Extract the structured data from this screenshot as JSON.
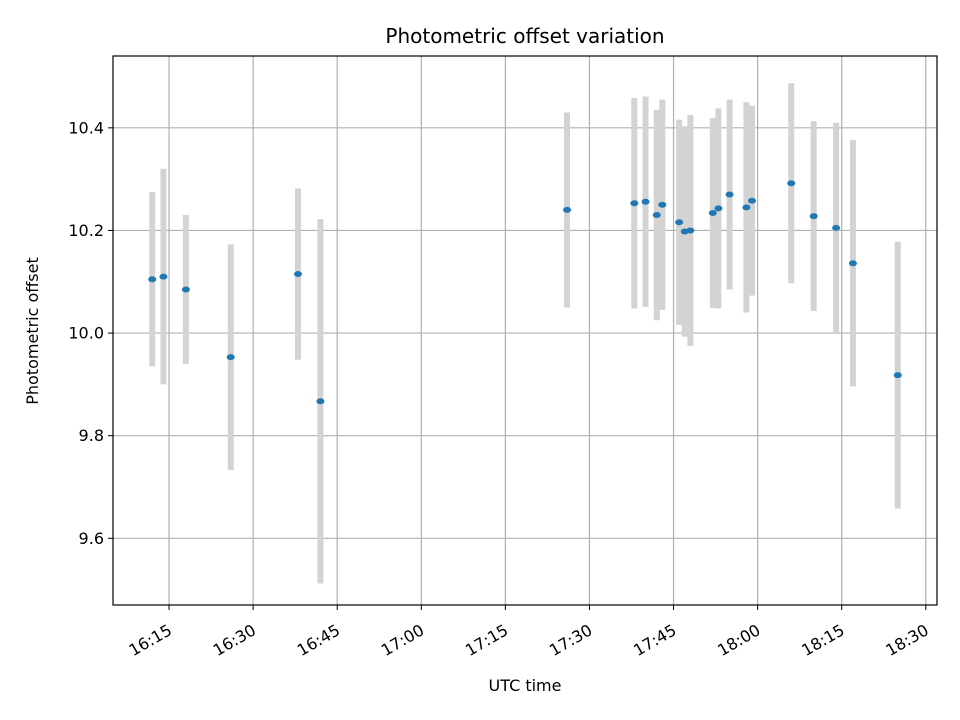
{
  "chart_data": {
    "type": "scatter",
    "title": "Photometric offset variation",
    "xlabel": "UTC time",
    "ylabel": "Photometric offset",
    "x_tick_labels": [
      "16:15",
      "16:30",
      "16:45",
      "17:00",
      "17:15",
      "17:30",
      "17:45",
      "18:00",
      "18:15",
      "18:30"
    ],
    "x_ticks": [
      "16:15",
      "16:30",
      "16:45",
      "17:00",
      "17:15",
      "17:30",
      "17:45",
      "18:00",
      "18:15",
      "18:30"
    ],
    "y_ticks": [
      9.6,
      9.8,
      10.0,
      10.2,
      10.4
    ],
    "y_tick_labels": [
      "9.6",
      "9.8",
      "10.0",
      "10.2",
      "10.4"
    ],
    "xlim": [
      "16:05",
      "18:32"
    ],
    "ylim": [
      9.47,
      10.54
    ],
    "grid": true,
    "colors": {
      "marker": "#1f77b4",
      "errorbar": "#d3d3d3",
      "grid": "#b0b0b0"
    },
    "series": [
      {
        "points": [
          {
            "x": "16:12",
            "y": 10.105,
            "err": 0.17
          },
          {
            "x": "16:14",
            "y": 10.11,
            "err": 0.21
          },
          {
            "x": "16:18",
            "y": 10.085,
            "err": 0.145
          },
          {
            "x": "16:26",
            "y": 9.953,
            "err": 0.22
          },
          {
            "x": "16:38",
            "y": 10.115,
            "err": 0.167
          },
          {
            "x": "16:42",
            "y": 9.867,
            "err": 0.355
          },
          {
            "x": "17:26",
            "y": 10.24,
            "err": 0.19
          },
          {
            "x": "17:38",
            "y": 10.253,
            "err": 0.205
          },
          {
            "x": "17:40",
            "y": 10.256,
            "err": 0.205
          },
          {
            "x": "17:42",
            "y": 10.23,
            "err": 0.205
          },
          {
            "x": "17:43",
            "y": 10.25,
            "err": 0.205
          },
          {
            "x": "17:46",
            "y": 10.216,
            "err": 0.2
          },
          {
            "x": "17:47",
            "y": 10.198,
            "err": 0.205
          },
          {
            "x": "17:48",
            "y": 10.2,
            "err": 0.225
          },
          {
            "x": "17:52",
            "y": 10.234,
            "err": 0.185
          },
          {
            "x": "17:53",
            "y": 10.243,
            "err": 0.195
          },
          {
            "x": "17:55",
            "y": 10.27,
            "err": 0.185
          },
          {
            "x": "17:58",
            "y": 10.245,
            "err": 0.205
          },
          {
            "x": "17:59",
            "y": 10.258,
            "err": 0.185
          },
          {
            "x": "18:06",
            "y": 10.292,
            "err": 0.195
          },
          {
            "x": "18:10",
            "y": 10.228,
            "err": 0.185
          },
          {
            "x": "18:14",
            "y": 10.205,
            "err": 0.205
          },
          {
            "x": "18:17",
            "y": 10.136,
            "err": 0.24
          },
          {
            "x": "18:25",
            "y": 9.918,
            "err": 0.26
          }
        ]
      }
    ]
  }
}
